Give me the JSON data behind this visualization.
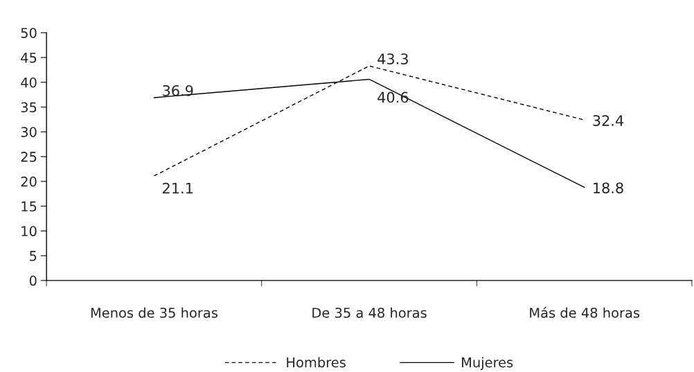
{
  "chart_data": {
    "type": "line",
    "categories": [
      "Menos de 35 horas",
      "De 35 a 48 horas",
      "Más de 48 horas"
    ],
    "series": [
      {
        "name": "Hombres",
        "color": "#000000",
        "line_style": "dashed",
        "values": [
          21.1,
          43.3,
          32.4
        ]
      },
      {
        "name": "Mujeres",
        "color": "#000000",
        "line_style": "solid",
        "values": [
          36.9,
          40.6,
          18.8
        ]
      }
    ],
    "ylim": [
      0,
      50
    ],
    "yticks": [
      0,
      5,
      10,
      15,
      20,
      25,
      30,
      35,
      40,
      45,
      50
    ],
    "data_labels": true,
    "grid": false,
    "legend": "bottom"
  }
}
